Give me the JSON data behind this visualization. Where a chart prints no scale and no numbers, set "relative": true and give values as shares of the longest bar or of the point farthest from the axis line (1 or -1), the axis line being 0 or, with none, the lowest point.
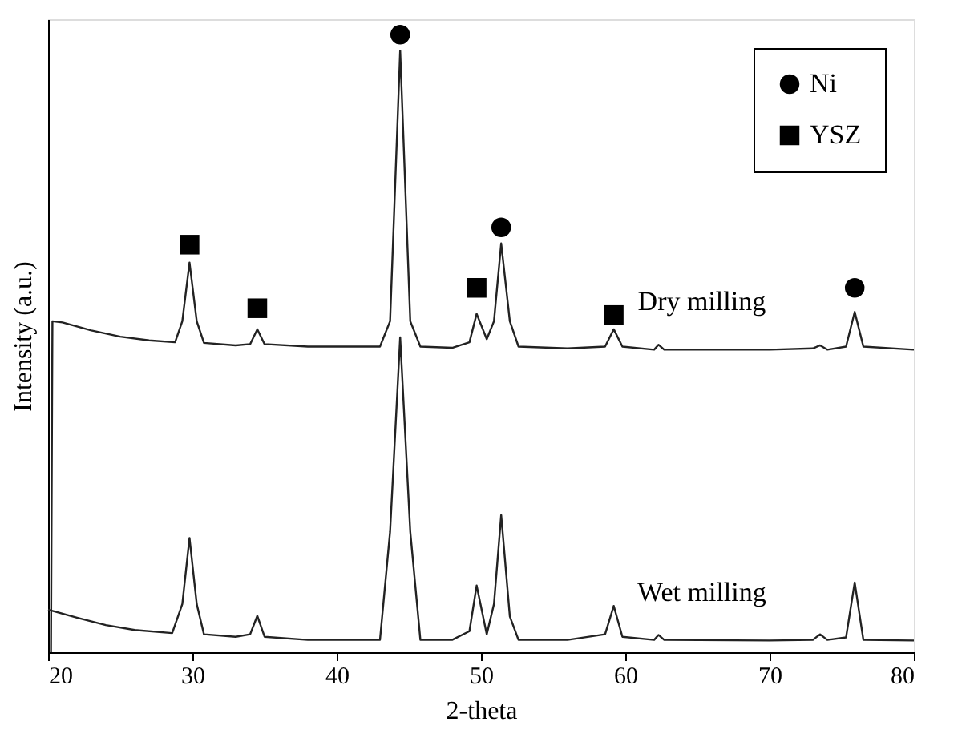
{
  "chart_data": {
    "type": "line",
    "relative": true,
    "xlabel": "2-theta",
    "ylabel": "Intensity (a.u.)",
    "xlim": [
      20,
      80
    ],
    "xticks": [
      20,
      30,
      40,
      50,
      60,
      70,
      80
    ],
    "tick_labels": "x",
    "grid": false,
    "legend": "top right",
    "line_style": "solid",
    "series": [
      {
        "color": "#222222",
        "marker": "none",
        "x": [
          20.2,
          20.3,
          21,
          23,
          25,
          27,
          28.8,
          29.3,
          29.8,
          30.3,
          30.8,
          33,
          34,
          34.5,
          35,
          38,
          43,
          43.7,
          44.4,
          45.1,
          45.8,
          48,
          49.2,
          49.7,
          50.4,
          50.9,
          51.4,
          52,
          52.6,
          56,
          58.6,
          59.2,
          59.8,
          62,
          62.3,
          62.7,
          70,
          73,
          73.5,
          74,
          75.3,
          75.9,
          76.5,
          80
        ],
        "values": [
          0,
          0.536,
          0.534,
          0.521,
          0.511,
          0.505,
          0.502,
          0.536,
          0.631,
          0.536,
          0.501,
          0.497,
          0.499,
          0.523,
          0.499,
          0.495,
          0.495,
          0.536,
          0.974,
          0.536,
          0.495,
          0.493,
          0.502,
          0.548,
          0.507,
          0.536,
          0.662,
          0.536,
          0.495,
          0.492,
          0.495,
          0.523,
          0.495,
          0.49,
          0.498,
          0.49,
          0.49,
          0.492,
          0.497,
          0.49,
          0.495,
          0.551,
          0.495,
          0.49
        ]
      },
      {
        "color": "#222222",
        "marker": "none",
        "x": [
          20,
          22,
          24,
          26,
          28.6,
          29.3,
          29.8,
          30.3,
          30.8,
          33,
          34,
          34.5,
          35,
          38,
          43,
          43.7,
          44.4,
          45.1,
          45.8,
          48,
          49.2,
          49.7,
          50.4,
          50.9,
          51.4,
          52,
          52.6,
          56,
          58.6,
          59.2,
          59.8,
          62,
          62.3,
          62.7,
          70,
          73,
          73.5,
          74,
          75.3,
          75.9,
          76.5,
          80
        ],
        "values": [
          0.069,
          0.056,
          0.044,
          0.036,
          0.031,
          0.078,
          0.185,
          0.078,
          0.029,
          0.025,
          0.029,
          0.059,
          0.025,
          0.02,
          0.02,
          0.195,
          0.51,
          0.195,
          0.02,
          0.02,
          0.034,
          0.108,
          0.029,
          0.078,
          0.222,
          0.058,
          0.02,
          0.02,
          0.029,
          0.075,
          0.025,
          0.02,
          0.028,
          0.02,
          0.019,
          0.02,
          0.029,
          0.02,
          0.024,
          0.113,
          0.02,
          0.019
        ]
      },
      {
        "type": "scatter",
        "name": "Ni",
        "color": "#000000",
        "marker": "circle",
        "x": [
          44.4,
          51.4,
          75.9
        ],
        "values": [
          1,
          0.688,
          0.59
        ]
      },
      {
        "type": "scatter",
        "name": "YSZ",
        "color": "#000000",
        "marker": "square",
        "x": [
          29.8,
          34.5,
          49.7,
          59.2
        ],
        "values": [
          0.66,
          0.557,
          0.59,
          0.546
        ]
      }
    ],
    "annotations": [
      "Dry milling",
      "Wet milling"
    ]
  }
}
